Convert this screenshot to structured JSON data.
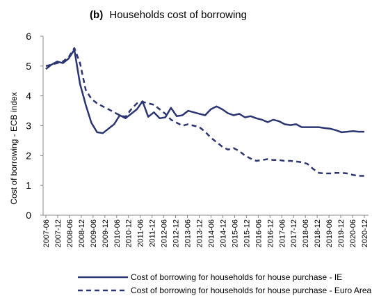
{
  "chart_data": {
    "type": "line",
    "title_prefix": "(b)",
    "title": "Households cost of borrowing",
    "ylabel": "Cost of borrowing - ECB index",
    "xlabel": "",
    "ylim": [
      0,
      6
    ],
    "yticks": [
      "0",
      "1",
      "2",
      "3",
      "4",
      "5",
      "6"
    ],
    "grid": false,
    "legend_position": "bottom",
    "x_tick_labels": [
      "2007-06",
      "2007-12",
      "2008-06",
      "2008-12",
      "2009-06",
      "2009-12",
      "2010-06",
      "2010-12",
      "2011-06",
      "2011-12",
      "2012-06",
      "2012-12",
      "2013-06",
      "2013-12",
      "2014-06",
      "2014-12",
      "2015-06",
      "2015-12",
      "2016-06",
      "2016-12",
      "2017-06",
      "2017-12",
      "2018-06",
      "2018-12",
      "2019-06",
      "2019-12",
      "2020-06",
      "2020-12"
    ],
    "series": [
      {
        "name": "Cost of borrowing for households for house purchase - IE",
        "style": "solid",
        "color": "#2b3572",
        "values": [
          4.9,
          5.05,
          5.15,
          5.1,
          5.25,
          5.55,
          4.4,
          3.7,
          3.1,
          2.78,
          2.75,
          2.9,
          3.05,
          3.35,
          3.25,
          3.4,
          3.55,
          3.82,
          3.3,
          3.45,
          3.25,
          3.28,
          3.6,
          3.32,
          3.35,
          3.5,
          3.45,
          3.4,
          3.35,
          3.55,
          3.65,
          3.55,
          3.42,
          3.35,
          3.4,
          3.28,
          3.32,
          3.25,
          3.2,
          3.12,
          3.2,
          3.15,
          3.05,
          3.02,
          3.05,
          2.95,
          2.95,
          2.95,
          2.95,
          2.92,
          2.9,
          2.85,
          2.78,
          2.8,
          2.82,
          2.8,
          2.8
        ]
      },
      {
        "name": "Cost of borrowing for households for house purchase - Euro Area",
        "style": "dashed",
        "color": "#2b3572",
        "values": [
          5.0,
          5.05,
          5.1,
          5.15,
          5.3,
          5.6,
          5.1,
          4.2,
          3.9,
          3.75,
          3.65,
          3.55,
          3.45,
          3.35,
          3.3,
          3.55,
          3.75,
          3.8,
          3.75,
          3.7,
          3.55,
          3.4,
          3.2,
          3.1,
          3.0,
          3.05,
          3.0,
          2.95,
          2.8,
          2.6,
          2.45,
          2.3,
          2.2,
          2.25,
          2.15,
          2.0,
          1.9,
          1.82,
          1.85,
          1.88,
          1.85,
          1.85,
          1.82,
          1.82,
          1.8,
          1.78,
          1.72,
          1.55,
          1.42,
          1.4,
          1.4,
          1.42,
          1.42,
          1.4,
          1.35,
          1.32,
          1.32
        ]
      }
    ]
  }
}
